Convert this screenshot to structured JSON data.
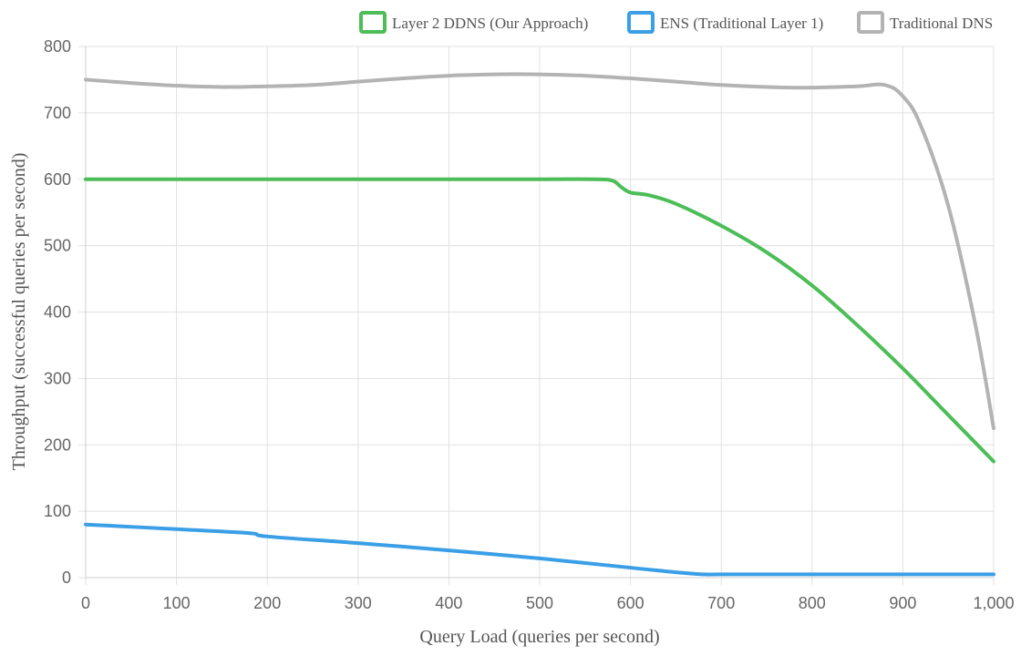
{
  "chart_data": {
    "type": "line",
    "title": "",
    "xlabel": "Query Load (queries per second)",
    "ylabel": "Throughput (successful queries per second)",
    "xlim": [
      0,
      1000
    ],
    "ylim": [
      0,
      800
    ],
    "x_ticks": [
      "0",
      "100",
      "200",
      "300",
      "400",
      "500",
      "600",
      "700",
      "800",
      "900",
      "1,000"
    ],
    "y_ticks": [
      "0",
      "100",
      "200",
      "300",
      "400",
      "500",
      "600",
      "700",
      "800"
    ],
    "x_tick_values": [
      0,
      100,
      200,
      300,
      400,
      500,
      600,
      700,
      800,
      900,
      1000
    ],
    "y_tick_values": [
      0,
      100,
      200,
      300,
      400,
      500,
      600,
      700,
      800
    ],
    "grid": true,
    "legend_position": "top-right",
    "series": [
      {
        "name": "Layer 2 DDNS (Our Approach)",
        "color": "#4cbd57",
        "x": [
          0,
          100,
          200,
          300,
          400,
          500,
          560,
          580,
          590,
          600,
          620,
          650,
          700,
          750,
          800,
          850,
          900,
          950,
          1000
        ],
        "y": [
          600,
          600,
          600,
          600,
          600,
          600,
          600,
          598,
          588,
          580,
          576,
          563,
          530,
          490,
          440,
          380,
          315,
          245,
          175
        ]
      },
      {
        "name": "ENS (Traditional Layer 1)",
        "color": "#3a9fe6",
        "x": [
          0,
          100,
          180,
          200,
          300,
          400,
          500,
          600,
          650,
          680,
          700,
          800,
          900,
          1000
        ],
        "y": [
          80,
          73,
          67,
          62,
          52,
          41,
          29,
          15,
          8,
          5,
          5,
          5,
          5,
          5
        ]
      },
      {
        "name": "Traditional DNS",
        "color": "#b3b3b3",
        "x": [
          0,
          50,
          100,
          150,
          200,
          250,
          300,
          350,
          400,
          450,
          500,
          550,
          600,
          650,
          700,
          750,
          800,
          850,
          880,
          900,
          920,
          950,
          980,
          1000
        ],
        "y": [
          750,
          745,
          741,
          739,
          740,
          742,
          747,
          752,
          756,
          758,
          758,
          756,
          752,
          747,
          742,
          739,
          738,
          740,
          742,
          725,
          680,
          560,
          380,
          225
        ]
      }
    ]
  }
}
